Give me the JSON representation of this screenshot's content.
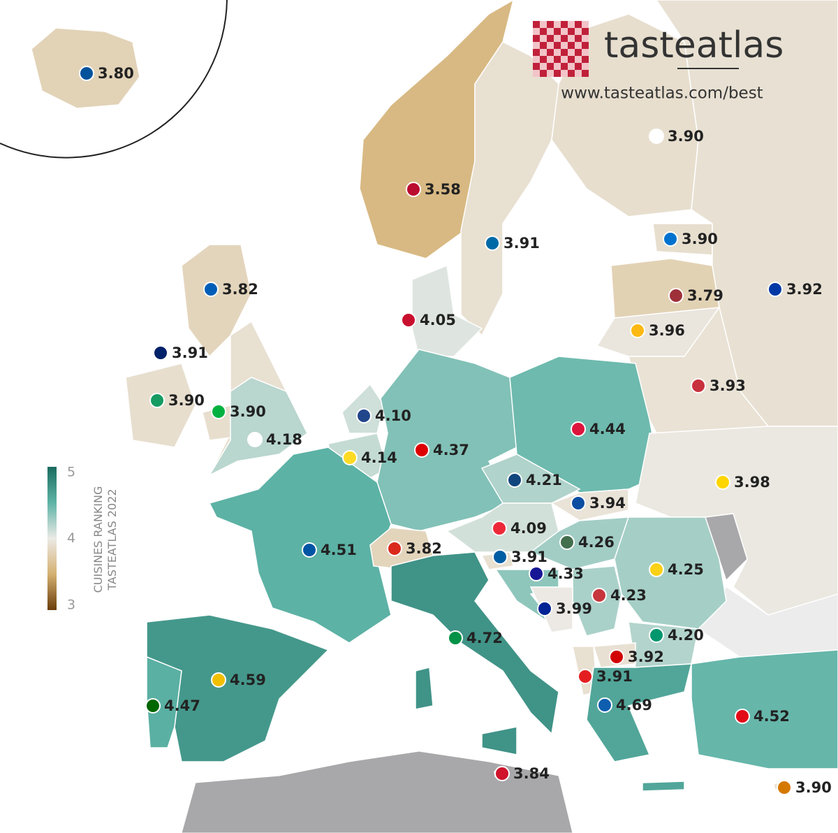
{
  "header": {
    "logo": "tasteatlas",
    "url": "www.tasteatlas.com/best"
  },
  "chart_data": {
    "type": "choropleth",
    "values": [
      3.8,
      3.58,
      3.91,
      3.9,
      3.9,
      3.79,
      3.92,
      3.96,
      3.93,
      4.05,
      3.82,
      3.91,
      3.9,
      3.9,
      4.18,
      4.1,
      4.14,
      4.37,
      4.44,
      4.21,
      3.94,
      3.98,
      4.09,
      4.26,
      4.51,
      3.82,
      3.91,
      4.33,
      4.25,
      4.23,
      3.99,
      4.72,
      4.2,
      3.92,
      3.91,
      4.59,
      4.47,
      4.69,
      4.52,
      3.84,
      3.9
    ],
    "value_labels": [
      "3.80",
      "3.58",
      "3.91",
      "3.90",
      "3.90",
      "3.79",
      "3.92",
      "3.96",
      "3.93",
      "4.05",
      "3.82",
      "3.91",
      "3.90",
      "3.90",
      "4.18",
      "4.10",
      "4.14",
      "4.37",
      "4.44",
      "4.21",
      "3.94",
      "3.98",
      "4.09",
      "4.26",
      "4.51",
      "3.82",
      "3.91",
      "4.33",
      "4.25",
      "4.23",
      "3.99",
      "4.72",
      "4.20",
      "3.92",
      "3.91",
      "4.59",
      "4.47",
      "4.69",
      "4.52",
      "3.84",
      "3.90"
    ],
    "colorbar_title": [
      "CUISINES RANKING",
      "TASTEATLAS 2022"
    ],
    "colorbar_lim": [
      3,
      5
    ],
    "colorbar_ticks": [
      3,
      4,
      5
    ]
  }
}
